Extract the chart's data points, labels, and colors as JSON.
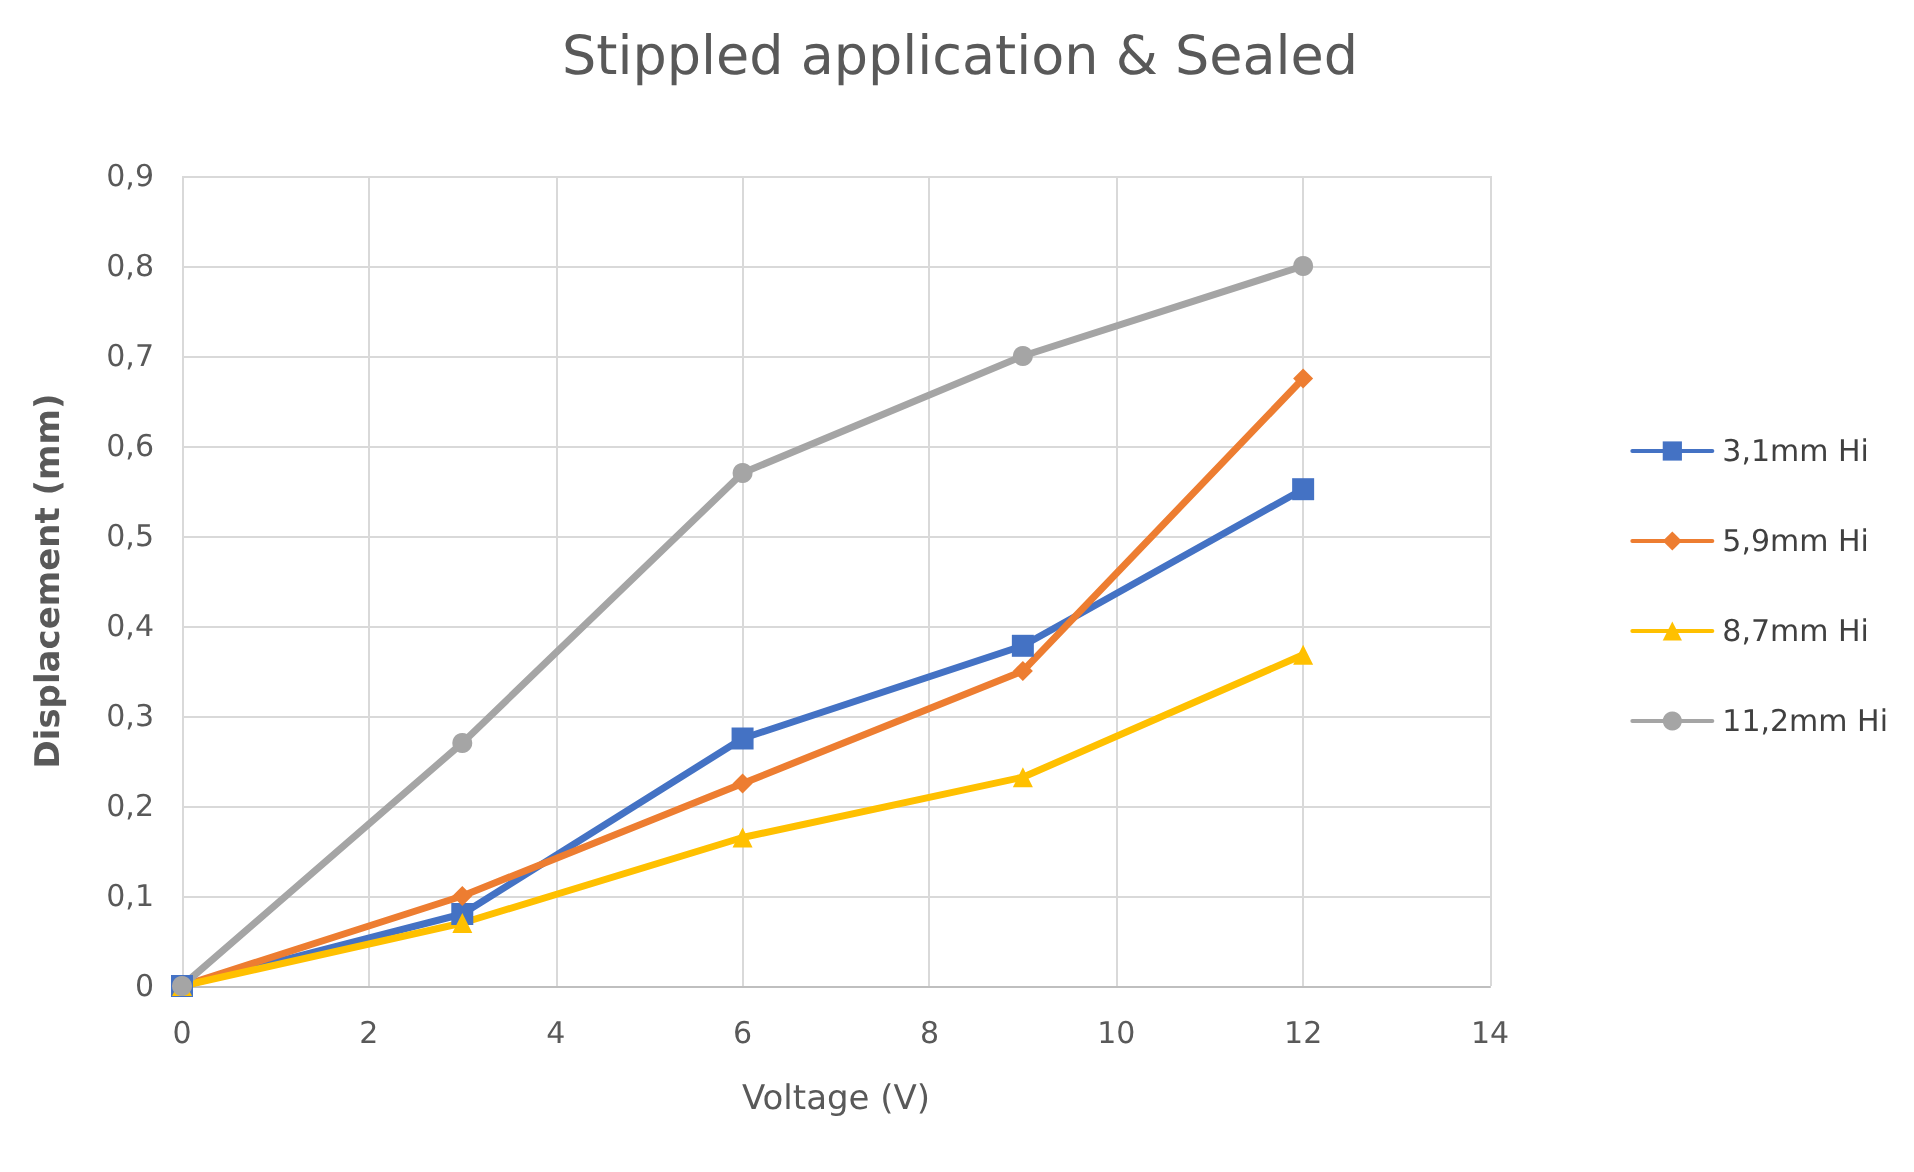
{
  "chart_data": {
    "type": "line",
    "title": "Stippled application & Sealed",
    "xlabel": "Voltage (V)",
    "ylabel": "Displacement (mm)",
    "x": [
      0,
      3,
      6,
      9,
      12
    ],
    "series": [
      {
        "name": "3,1mm Hi",
        "color": "#4472c4",
        "marker": "square",
        "values": [
          0,
          0.08,
          0.275,
          0.378,
          0.552
        ]
      },
      {
        "name": "5,9mm Hi",
        "color": "#ed7d31",
        "marker": "diamond",
        "values": [
          0,
          0.1,
          0.225,
          0.35,
          0.675
        ]
      },
      {
        "name": "8,7mm Hi",
        "color": "#ffc000",
        "marker": "triangle",
        "values": [
          0,
          0.07,
          0.165,
          0.232,
          0.368
        ]
      },
      {
        "name": "11,2mm Hi",
        "color": "#a5a5a5",
        "marker": "circle",
        "values": [
          0,
          0.27,
          0.57,
          0.7,
          0.8
        ]
      }
    ],
    "xlim": [
      0,
      14
    ],
    "xticks": [
      0,
      2,
      4,
      6,
      8,
      10,
      12,
      14
    ],
    "ylim": [
      0,
      0.9
    ],
    "yticks": [
      0,
      {
        "value": 0.1,
        "label": "0,1"
      },
      {
        "value": 0.2,
        "label": "0,2"
      },
      {
        "value": 0.3,
        "label": "0,3"
      },
      {
        "value": 0.4,
        "label": "0,4"
      },
      {
        "value": 0.5,
        "label": "0,5"
      },
      {
        "value": 0.6,
        "label": "0,6"
      },
      {
        "value": 0.7,
        "label": "0,7"
      },
      {
        "value": 0.8,
        "label": "0,8"
      },
      {
        "value": 0.9,
        "label": "0,9"
      }
    ],
    "grid": true,
    "legend": "right",
    "line_style": "solid"
  }
}
